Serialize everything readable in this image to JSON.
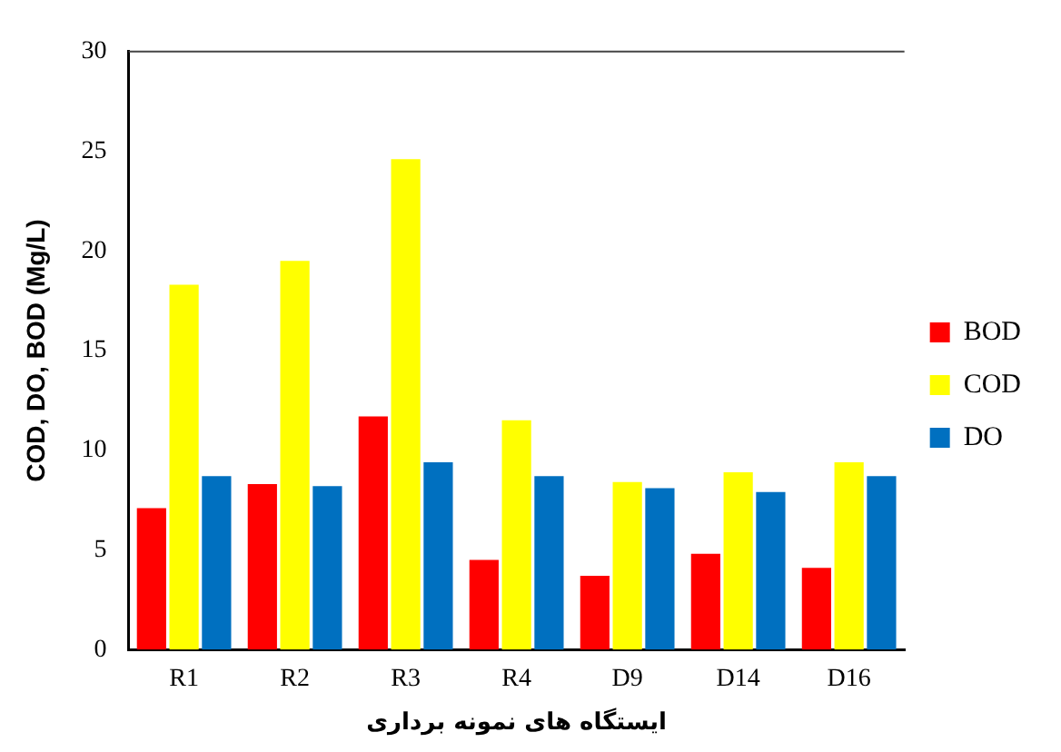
{
  "chart_data": {
    "type": "bar",
    "xlabel": "ایستگاه های نمونه برداری",
    "ylabel": "COD, DO, BOD (Mg/L)",
    "categories": [
      "R1",
      "R2",
      "R3",
      "R4",
      "D9",
      "D14",
      "D16"
    ],
    "series": [
      {
        "name": "BOD",
        "color": "#ff0000",
        "values": [
          7.1,
          8.3,
          11.7,
          4.5,
          3.7,
          4.8,
          4.1
        ]
      },
      {
        "name": "COD",
        "color": "#ffff00",
        "values": [
          18.3,
          19.5,
          24.6,
          11.5,
          8.4,
          8.9,
          9.4
        ]
      },
      {
        "name": "DO",
        "color": "#0070c0",
        "values": [
          8.7,
          8.2,
          9.4,
          8.7,
          8.1,
          7.9,
          8.7
        ]
      }
    ],
    "ylim": [
      0,
      30
    ],
    "yticks": [
      0,
      5,
      10,
      15,
      20,
      25,
      30
    ],
    "grid": false,
    "legend": "right"
  }
}
